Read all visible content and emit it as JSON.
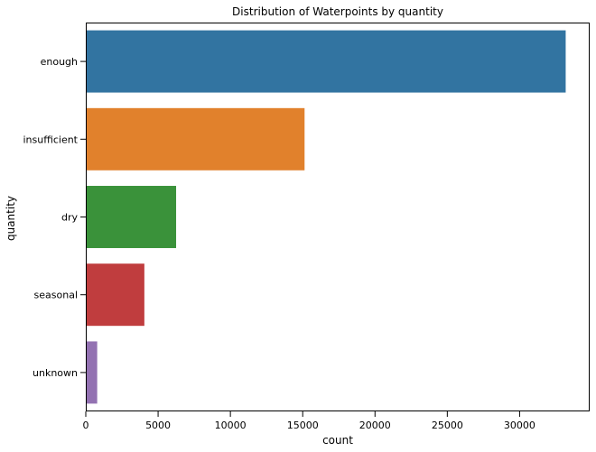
{
  "chart_data": {
    "type": "bar",
    "orientation": "horizontal",
    "title": "Distribution of Waterpoints by quantity",
    "xlabel": "count",
    "ylabel": "quantity",
    "categories": [
      "enough",
      "insufficient",
      "dry",
      "seasonal",
      "unknown"
    ],
    "values": [
      33186,
      15129,
      6246,
      4050,
      789
    ],
    "colors": [
      "#3274a1",
      "#e1812c",
      "#3a923a",
      "#c03d3e",
      "#9372b2"
    ],
    "xlim": [
      0,
      34845
    ],
    "x_ticks": [
      0,
      5000,
      10000,
      15000,
      20000,
      25000,
      30000
    ],
    "grid": false,
    "legend": "none"
  }
}
